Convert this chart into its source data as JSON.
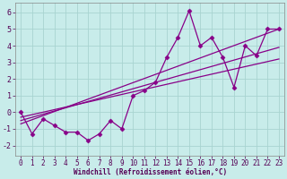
{
  "xlabel": "Windchill (Refroidissement éolien,°C)",
  "bg_color": "#c8ecea",
  "grid_color": "#a8d4d0",
  "line_color": "#880088",
  "xlim": [
    -0.5,
    23.5
  ],
  "ylim": [
    -2.6,
    6.6
  ],
  "yticks": [
    -2,
    -1,
    0,
    1,
    2,
    3,
    4,
    5,
    6
  ],
  "xticks": [
    0,
    1,
    2,
    3,
    4,
    5,
    6,
    7,
    8,
    9,
    10,
    11,
    12,
    13,
    14,
    15,
    16,
    17,
    18,
    19,
    20,
    21,
    22,
    23
  ],
  "data_x": [
    0,
    1,
    2,
    3,
    4,
    5,
    6,
    7,
    8,
    9,
    10,
    11,
    12,
    13,
    14,
    15,
    16,
    17,
    18,
    19,
    20,
    21,
    22,
    23
  ],
  "data_y": [
    0.0,
    -1.3,
    -0.4,
    -0.8,
    -1.2,
    -1.2,
    -1.7,
    -1.3,
    -0.5,
    -1.0,
    1.0,
    1.3,
    1.8,
    3.3,
    4.5,
    6.1,
    4.0,
    4.5,
    3.3,
    1.5,
    4.0,
    3.4,
    5.0,
    5.0
  ],
  "reg_lines": [
    {
      "x": [
        0,
        23
      ],
      "y": [
        -0.3,
        3.2
      ]
    },
    {
      "x": [
        0,
        23
      ],
      "y": [
        -0.5,
        3.9
      ]
    },
    {
      "x": [
        0,
        23
      ],
      "y": [
        -0.7,
        5.0
      ]
    }
  ],
  "tick_fontsize": 5.5,
  "xlabel_fontsize": 5.5,
  "tick_color": "#550055",
  "spine_color": "#888888"
}
